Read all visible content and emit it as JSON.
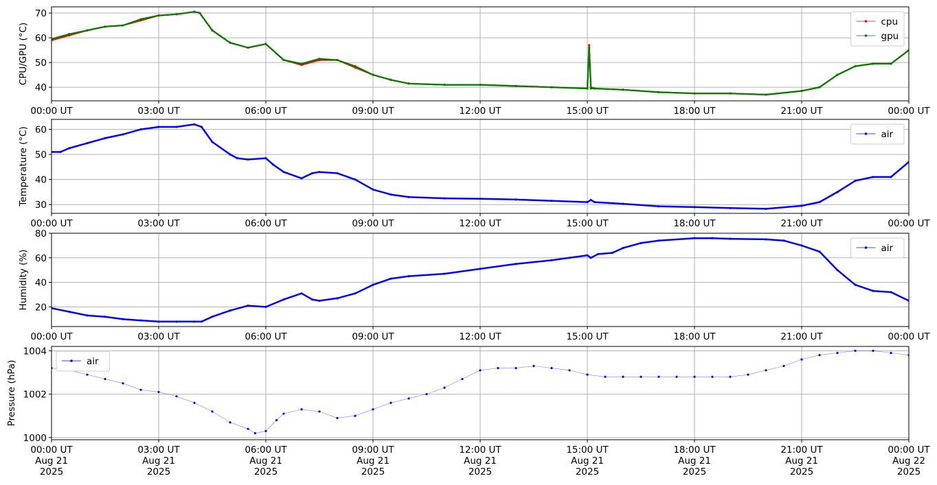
{
  "chart_data": [
    {
      "type": "line",
      "ylabel": "CPU/GPU (°C)",
      "ylim": [
        34.5,
        72.5
      ],
      "yticks": [
        40,
        50,
        60,
        70
      ],
      "xlim": [
        0,
        24
      ],
      "xticks": [
        0,
        3,
        6,
        9,
        12,
        15,
        18,
        21,
        24
      ],
      "xtick_labels": [
        "00:00 UT",
        "03:00 UT",
        "06:00 UT",
        "09:00 UT",
        "12:00 UT",
        "15:00 UT",
        "18:00 UT",
        "21:00 UT",
        "00:00 UT"
      ],
      "grid": true,
      "legend": "top-right",
      "series": [
        {
          "name": "cpu",
          "color": "#ff0000",
          "x": [
            0,
            0.5,
            1,
            1.5,
            2,
            2.5,
            3,
            3.5,
            4,
            4.15,
            4.5,
            5,
            5.5,
            6,
            6.5,
            7,
            7.5,
            8,
            8.5,
            9,
            9.5,
            10,
            11,
            12,
            13,
            14,
            15,
            15.05,
            15.1,
            15.2,
            16,
            17,
            18,
            19,
            20,
            21,
            21.5,
            22,
            22.5,
            23,
            23.5,
            24
          ],
          "values": [
            59,
            61,
            63,
            64.5,
            65,
            67,
            69,
            69.5,
            70.5,
            70,
            63,
            58,
            56,
            57.5,
            51,
            49,
            51,
            51,
            48,
            45,
            43,
            41.5,
            41,
            41,
            40.5,
            40,
            39.5,
            57,
            40,
            39.5,
            39,
            38,
            37.5,
            37.5,
            37,
            38.5,
            40,
            45,
            48.5,
            49.5,
            49.5,
            55
          ]
        },
        {
          "name": "gpu",
          "color": "#008000",
          "x": [
            0,
            0.5,
            1,
            1.5,
            2,
            2.5,
            3,
            3.5,
            4,
            4.15,
            4.5,
            5,
            5.5,
            6,
            6.5,
            7,
            7.5,
            8,
            8.5,
            9,
            9.5,
            10,
            11,
            12,
            13,
            14,
            15,
            15.05,
            15.1,
            15.2,
            16,
            17,
            18,
            19,
            20,
            21,
            21.5,
            22,
            22.5,
            23,
            23.5,
            24
          ],
          "values": [
            59.5,
            61.5,
            63,
            64.5,
            65,
            67.5,
            69,
            69.5,
            70.5,
            70,
            63,
            58,
            56,
            57.5,
            51,
            49.5,
            51.5,
            51,
            48.5,
            45,
            43,
            41.5,
            41,
            41,
            40.5,
            40,
            39.5,
            56,
            39.5,
            39.5,
            39,
            38,
            37.5,
            37.5,
            37,
            38.5,
            40,
            45,
            48.5,
            49.5,
            49.5,
            55
          ]
        }
      ]
    },
    {
      "type": "line",
      "ylabel": "Temperature (°C)",
      "ylim": [
        26.5,
        64
      ],
      "yticks": [
        30,
        40,
        50,
        60
      ],
      "xlim": [
        0,
        24
      ],
      "xticks": [
        0,
        3,
        6,
        9,
        12,
        15,
        18,
        21,
        24
      ],
      "xtick_labels": [
        "00:00 UT",
        "03:00 UT",
        "06:00 UT",
        "09:00 UT",
        "12:00 UT",
        "15:00 UT",
        "18:00 UT",
        "21:00 UT",
        "00:00 UT"
      ],
      "grid": true,
      "legend": "top-right",
      "series": [
        {
          "name": "air",
          "color": "#0000ff",
          "x": [
            0,
            0.25,
            0.5,
            1,
            1.5,
            2,
            2.5,
            3,
            3.5,
            4,
            4.2,
            4.5,
            5,
            5.2,
            5.5,
            6,
            6.2,
            6.5,
            7,
            7.3,
            7.5,
            8,
            8.5,
            9,
            9.5,
            10,
            11,
            12,
            13,
            14,
            15,
            15.1,
            15.2,
            16,
            17,
            18,
            19,
            20,
            21,
            21.5,
            22,
            22.5,
            23,
            23.5,
            24
          ],
          "values": [
            51,
            51,
            52.5,
            54.5,
            56.5,
            58,
            60,
            61,
            61,
            62,
            61,
            55,
            50,
            48.5,
            48,
            48.5,
            46,
            43,
            40.5,
            42.5,
            43,
            42.5,
            40,
            36,
            34,
            33,
            32.5,
            32.3,
            32,
            31.5,
            31,
            31.8,
            31,
            30.3,
            29.3,
            29,
            28.6,
            28.3,
            29.5,
            31,
            35,
            39.5,
            41,
            41,
            47
          ]
        }
      ]
    },
    {
      "type": "line",
      "ylabel": "Humidity (%)",
      "ylim": [
        4,
        80
      ],
      "yticks": [
        20,
        40,
        60,
        80
      ],
      "xlim": [
        0,
        24
      ],
      "xticks": [
        0,
        3,
        6,
        9,
        12,
        15,
        18,
        21,
        24
      ],
      "xtick_labels": [
        "00:00 UT",
        "03:00 UT",
        "06:00 UT",
        "09:00 UT",
        "12:00 UT",
        "15:00 UT",
        "18:00 UT",
        "21:00 UT",
        "00:00 UT"
      ],
      "grid": true,
      "legend": "top-right",
      "series": [
        {
          "name": "air",
          "color": "#0000ff",
          "x": [
            0,
            0.5,
            1,
            1.5,
            2,
            2.5,
            3,
            3.5,
            4,
            4.2,
            4.5,
            5,
            5.5,
            6,
            6.5,
            7,
            7.3,
            7.5,
            8,
            8.5,
            9,
            9.5,
            10,
            11,
            12,
            13,
            14,
            14.5,
            15,
            15.1,
            15.3,
            15.7,
            16,
            16.5,
            17,
            18,
            18.5,
            19,
            20,
            20.5,
            21,
            21.5,
            22,
            22.5,
            23,
            23.5,
            24
          ],
          "values": [
            19,
            16,
            13,
            12,
            10,
            9,
            8,
            8,
            8,
            8,
            12,
            17,
            21,
            20,
            26,
            31,
            26,
            25,
            27,
            31,
            38,
            43,
            45,
            47,
            51,
            55,
            58,
            60,
            62,
            60,
            63,
            64,
            68,
            72,
            74,
            76,
            76,
            75.5,
            75,
            74,
            70,
            65,
            50,
            38,
            33,
            32,
            25
          ]
        }
      ]
    },
    {
      "type": "scatter",
      "ylabel": "Pressure (hPa)",
      "ylim": [
        999.9,
        1004.2
      ],
      "yticks": [
        1000,
        1002,
        1004
      ],
      "xlim": [
        0,
        24
      ],
      "xticks": [
        0,
        3,
        6,
        9,
        12,
        15,
        18,
        21,
        24
      ],
      "xtick_labels": [
        [
          "00:00 UT",
          "Aug 21",
          "2025"
        ],
        [
          "03:00 UT",
          "Aug 21",
          "2025"
        ],
        [
          "06:00 UT",
          "Aug 21",
          "2025"
        ],
        [
          "09:00 UT",
          "Aug 21",
          "2025"
        ],
        [
          "12:00 UT",
          "Aug 21",
          "2025"
        ],
        [
          "15:00 UT",
          "Aug 21",
          "2025"
        ],
        [
          "18:00 UT",
          "Aug 21",
          "2025"
        ],
        [
          "21:00 UT",
          "Aug 21",
          "2025"
        ],
        [
          "00:00 UT",
          "Aug 22",
          "2025"
        ]
      ],
      "grid": true,
      "legend": "top-left",
      "series": [
        {
          "name": "air",
          "color": "#0000ff",
          "x": [
            0,
            0.5,
            1,
            1.5,
            2,
            2.5,
            3,
            3.5,
            4,
            4.5,
            5,
            5.5,
            5.7,
            6,
            6.3,
            6.5,
            7,
            7.5,
            8,
            8.5,
            9,
            9.5,
            10,
            10.5,
            11,
            11.5,
            12,
            12.5,
            13,
            13.5,
            14,
            14.5,
            15,
            15.5,
            16,
            16.5,
            17,
            17.5,
            18,
            18.5,
            19,
            19.5,
            20,
            20.5,
            21,
            21.5,
            22,
            22.5,
            23,
            23.5,
            24
          ],
          "values": [
            1003.2,
            1003.1,
            1002.9,
            1002.7,
            1002.5,
            1002.2,
            1002.1,
            1001.9,
            1001.6,
            1001.2,
            1000.7,
            1000.4,
            1000.2,
            1000.3,
            1000.8,
            1001.1,
            1001.3,
            1001.2,
            1000.9,
            1001.0,
            1001.3,
            1001.6,
            1001.8,
            1002.0,
            1002.3,
            1002.7,
            1003.1,
            1003.2,
            1003.2,
            1003.3,
            1003.2,
            1003.1,
            1002.9,
            1002.8,
            1002.8,
            1002.8,
            1002.8,
            1002.8,
            1002.8,
            1002.8,
            1002.8,
            1002.9,
            1003.1,
            1003.3,
            1003.6,
            1003.8,
            1003.9,
            1004.0,
            1004.0,
            1003.9,
            1003.8
          ]
        }
      ]
    }
  ]
}
